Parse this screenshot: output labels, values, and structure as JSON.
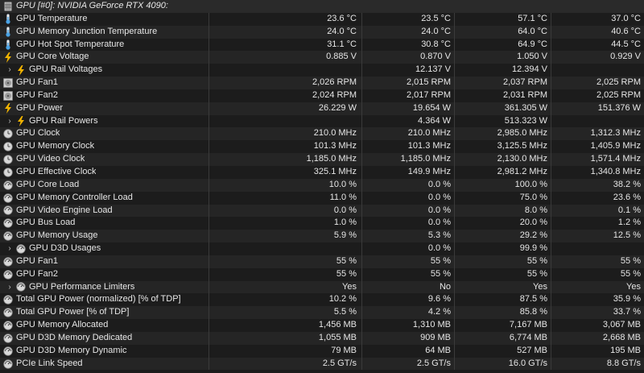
{
  "header": {
    "title": "GPU [#0]: NVIDIA GeForce RTX 4090:"
  },
  "rows": [
    {
      "icon": "thermometer-icon",
      "label": "GPU Temperature",
      "v": [
        "23.6 °C",
        "23.5 °C",
        "57.1 °C",
        "37.0 °C"
      ]
    },
    {
      "icon": "thermometer-icon",
      "label": "GPU Memory Junction Temperature",
      "v": [
        "24.0 °C",
        "24.0 °C",
        "64.0 °C",
        "40.6 °C"
      ]
    },
    {
      "icon": "thermometer-icon",
      "label": "GPU Hot Spot Temperature",
      "v": [
        "31.1 °C",
        "30.8 °C",
        "64.9 °C",
        "44.5 °C"
      ]
    },
    {
      "icon": "lightning-icon",
      "label": "GPU Core Voltage",
      "v": [
        "0.885 V",
        "0.870 V",
        "1.050 V",
        "0.929 V"
      ]
    },
    {
      "icon": "lightning-icon",
      "label": "GPU Rail Voltages",
      "expander": true,
      "v": [
        "",
        "12.137 V",
        "12.394 V",
        ""
      ]
    },
    {
      "icon": "fan-icon",
      "label": "GPU Fan1",
      "v": [
        "2,026 RPM",
        "2,015 RPM",
        "2,037 RPM",
        "2,025 RPM"
      ]
    },
    {
      "icon": "fan-icon",
      "label": "GPU Fan2",
      "v": [
        "2,024 RPM",
        "2,017 RPM",
        "2,031 RPM",
        "2,025 RPM"
      ]
    },
    {
      "icon": "lightning-icon",
      "label": "GPU Power",
      "v": [
        "26.229 W",
        "19.654 W",
        "361.305 W",
        "151.376 W"
      ]
    },
    {
      "icon": "lightning-icon",
      "label": "GPU Rail Powers",
      "expander": true,
      "v": [
        "",
        "4.364 W",
        "513.323 W",
        ""
      ]
    },
    {
      "icon": "clock-icon",
      "label": "GPU Clock",
      "v": [
        "210.0 MHz",
        "210.0 MHz",
        "2,985.0 MHz",
        "1,312.3 MHz"
      ]
    },
    {
      "icon": "clock-icon",
      "label": "GPU Memory Clock",
      "v": [
        "101.3 MHz",
        "101.3 MHz",
        "3,125.5 MHz",
        "1,405.9 MHz"
      ]
    },
    {
      "icon": "clock-icon",
      "label": "GPU Video Clock",
      "v": [
        "1,185.0 MHz",
        "1,185.0 MHz",
        "2,130.0 MHz",
        "1,571.4 MHz"
      ]
    },
    {
      "icon": "clock-icon",
      "label": "GPU Effective Clock",
      "v": [
        "325.1 MHz",
        "149.9 MHz",
        "2,981.2 MHz",
        "1,340.8 MHz"
      ]
    },
    {
      "icon": "gauge-icon",
      "label": "GPU Core Load",
      "v": [
        "10.0 %",
        "0.0 %",
        "100.0 %",
        "38.2 %"
      ]
    },
    {
      "icon": "gauge-icon",
      "label": "GPU Memory Controller Load",
      "v": [
        "11.0 %",
        "0.0 %",
        "75.0 %",
        "23.6 %"
      ]
    },
    {
      "icon": "gauge-icon",
      "label": "GPU Video Engine Load",
      "v": [
        "0.0 %",
        "0.0 %",
        "8.0 %",
        "0.1 %"
      ]
    },
    {
      "icon": "gauge-icon",
      "label": "GPU Bus Load",
      "v": [
        "1.0 %",
        "0.0 %",
        "20.0 %",
        "1.2 %"
      ]
    },
    {
      "icon": "gauge-icon",
      "label": "GPU Memory Usage",
      "v": [
        "5.9 %",
        "5.3 %",
        "29.2 %",
        "12.5 %"
      ]
    },
    {
      "icon": "gauge-icon",
      "label": "GPU D3D Usages",
      "expander": true,
      "v": [
        "",
        "0.0 %",
        "99.9 %",
        ""
      ]
    },
    {
      "icon": "gauge-icon",
      "label": "GPU Fan1",
      "v": [
        "55 %",
        "55 %",
        "55 %",
        "55 %"
      ]
    },
    {
      "icon": "gauge-icon",
      "label": "GPU Fan2",
      "v": [
        "55 %",
        "55 %",
        "55 %",
        "55 %"
      ]
    },
    {
      "icon": "gauge-icon",
      "label": "GPU Performance Limiters",
      "expander": true,
      "v": [
        "Yes",
        "No",
        "Yes",
        "Yes"
      ]
    },
    {
      "icon": "gauge-icon",
      "label": "Total GPU Power (normalized) [% of TDP]",
      "v": [
        "10.2 %",
        "9.6 %",
        "87.5 %",
        "35.9 %"
      ]
    },
    {
      "icon": "gauge-icon",
      "label": "Total GPU Power [% of TDP]",
      "v": [
        "5.5 %",
        "4.2 %",
        "85.8 %",
        "33.7 %"
      ]
    },
    {
      "icon": "gauge-icon",
      "label": "GPU Memory Allocated",
      "v": [
        "1,456 MB",
        "1,310 MB",
        "7,167 MB",
        "3,067 MB"
      ]
    },
    {
      "icon": "gauge-icon",
      "label": "GPU D3D Memory Dedicated",
      "v": [
        "1,055 MB",
        "909 MB",
        "6,774 MB",
        "2,668 MB"
      ]
    },
    {
      "icon": "gauge-icon",
      "label": "GPU D3D Memory Dynamic",
      "v": [
        "79 MB",
        "64 MB",
        "527 MB",
        "195 MB"
      ]
    },
    {
      "icon": "gauge-icon",
      "label": "PCIe Link Speed",
      "v": [
        "2.5 GT/s",
        "2.5 GT/s",
        "16.0 GT/s",
        "8.8 GT/s"
      ]
    }
  ]
}
